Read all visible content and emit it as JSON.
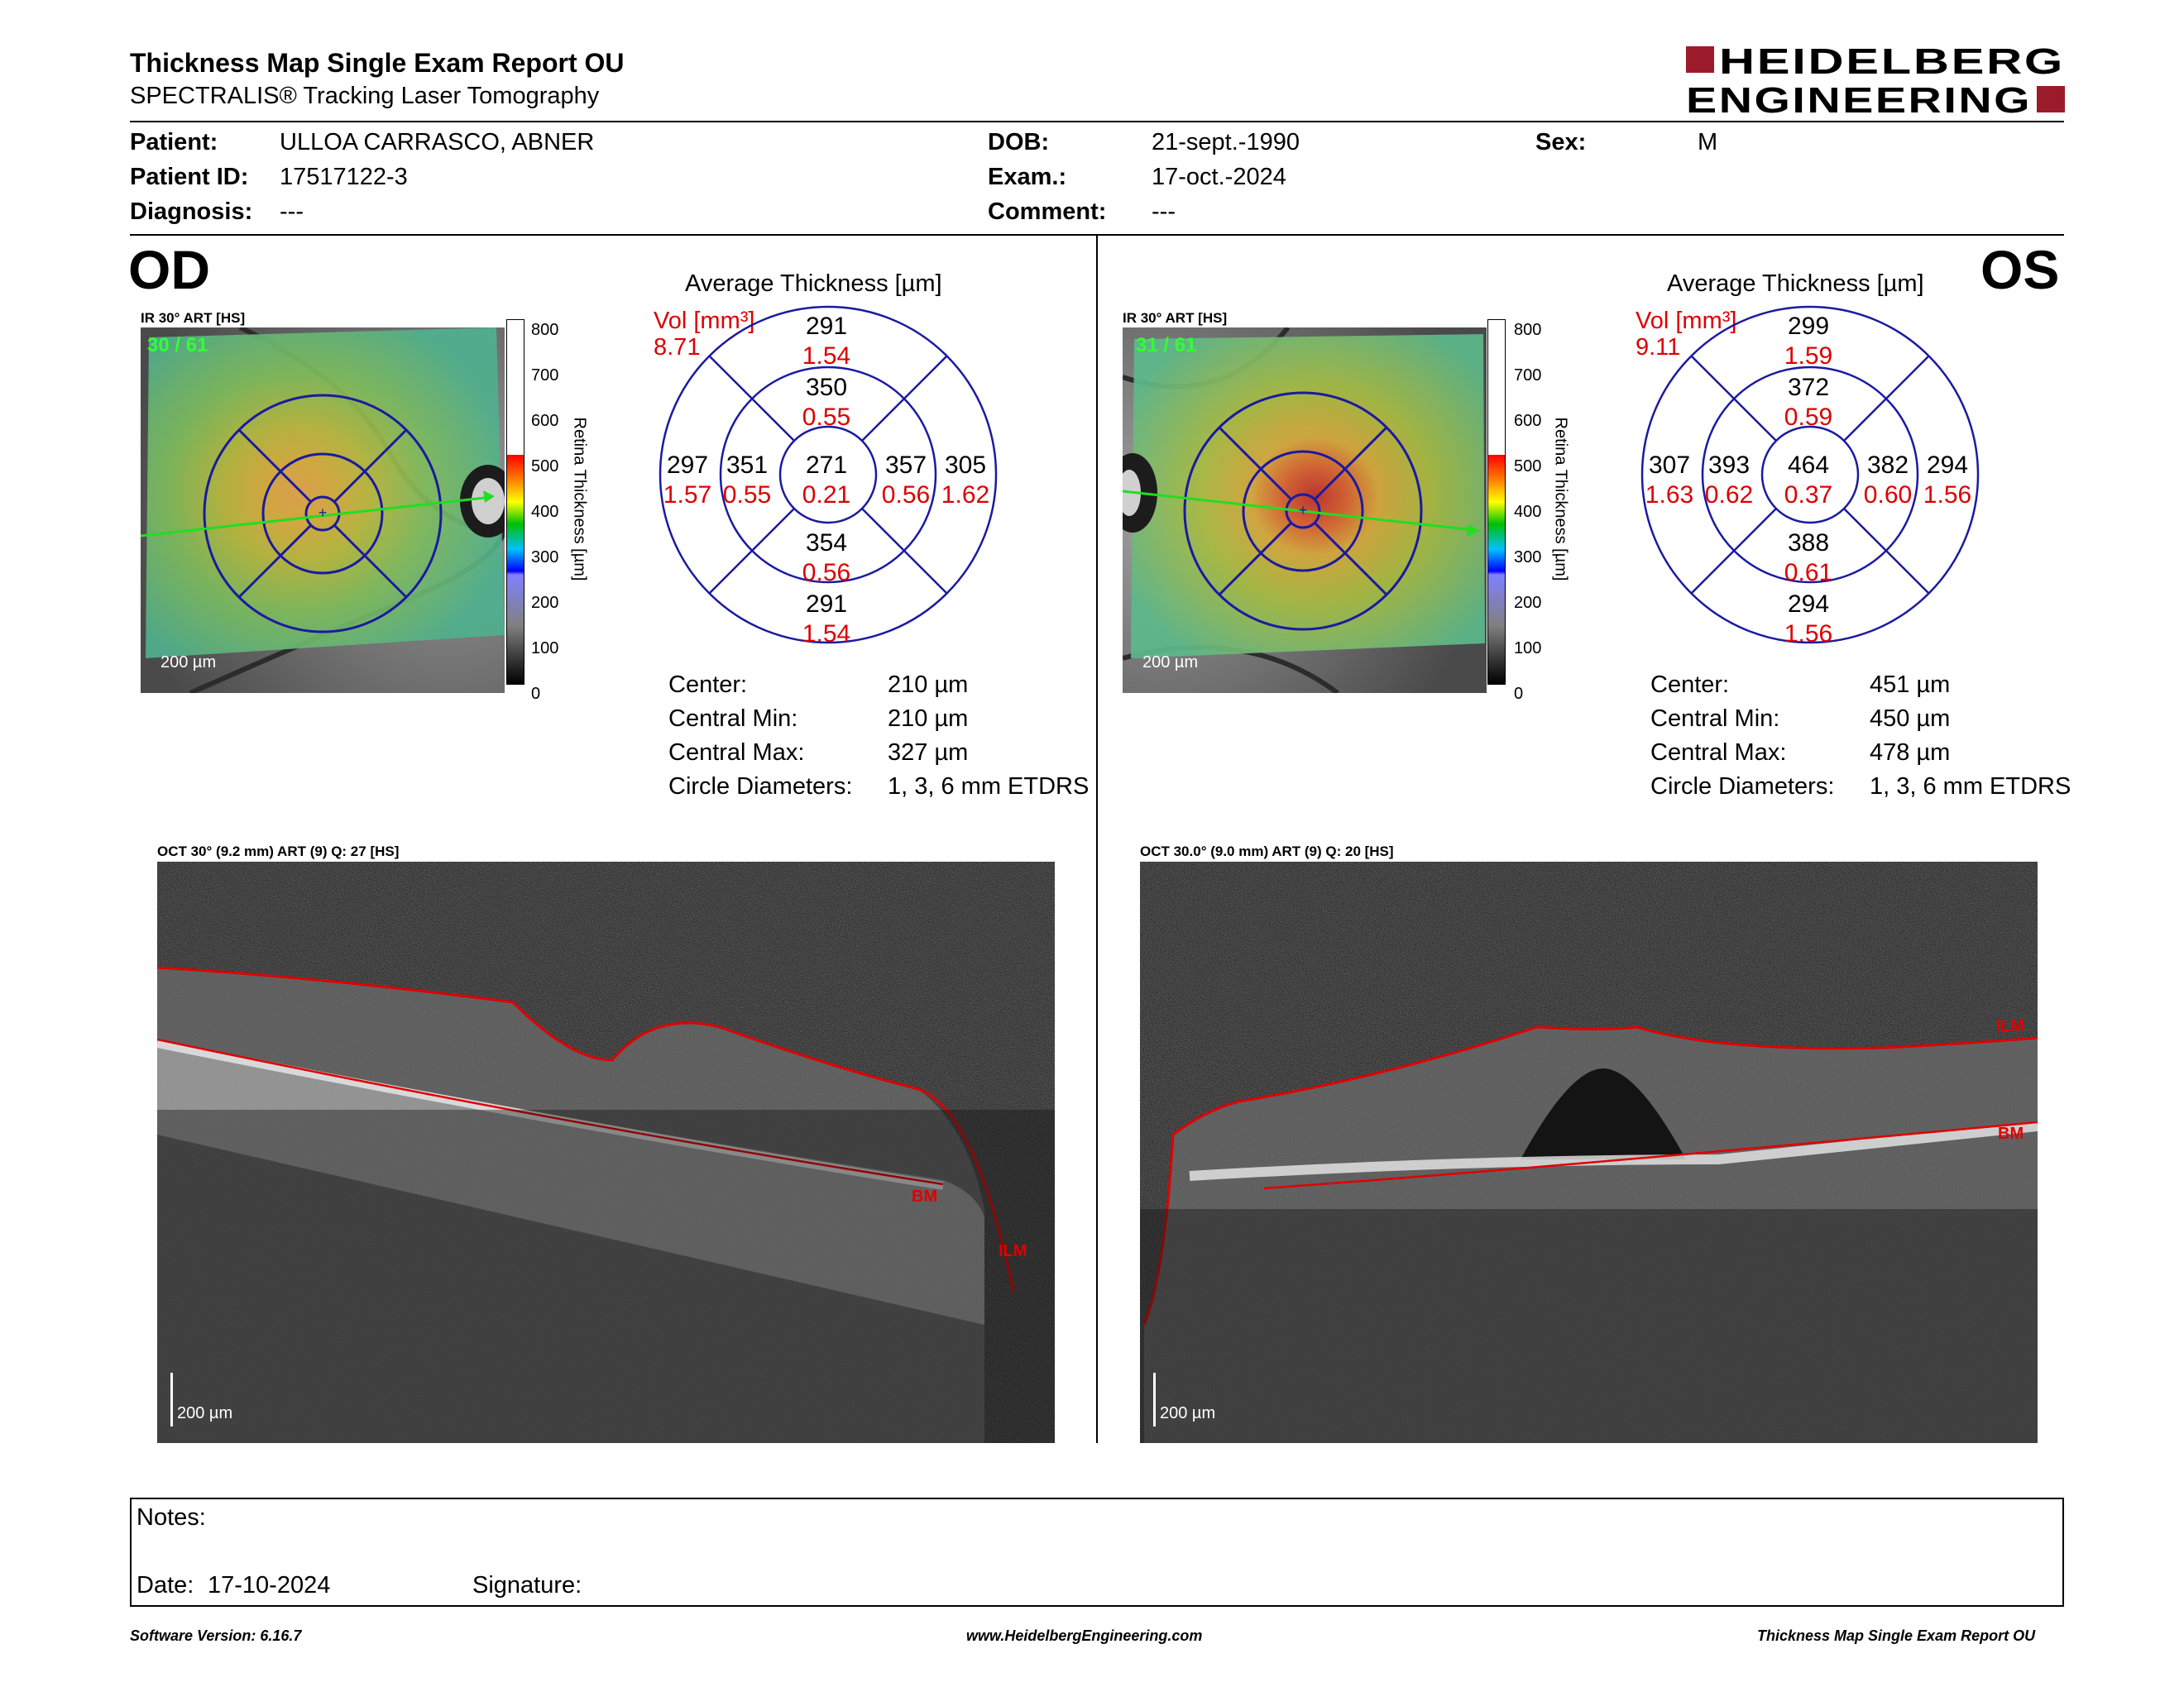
{
  "header": {
    "title": "Thickness Map Single Exam Report OU",
    "subtitle": "SPECTRALIS® Tracking Laser Tomography",
    "logo_line1": "HEIDELBERG",
    "logo_line2": "ENGINEERING"
  },
  "patient": {
    "patient_label": "Patient:",
    "patient_value": "ULLOA CARRASCO, ABNER",
    "id_label": "Patient ID:",
    "id_value": "17517122-3",
    "diag_label": "Diagnosis:",
    "diag_value": "---",
    "dob_label": "DOB:",
    "dob_value": "21-sept.-1990",
    "exam_label": "Exam.:",
    "exam_value": "17-oct.-2024",
    "comment_label": "Comment:",
    "comment_value": "---",
    "sex_label": "Sex:",
    "sex_value": "M"
  },
  "od": {
    "eye": "OD",
    "ir_label": "IR 30° ART [HS]",
    "frames": "30 / 61",
    "scale_label": "200 µm",
    "colorbar_ticks": [
      "800",
      "700",
      "600",
      "500",
      "400",
      "300",
      "200",
      "100",
      "0"
    ],
    "colorbar_title": "Retina Thickness [µm]",
    "avg_title": "Average Thickness [µm]",
    "vol_label": "Vol [mm³]",
    "vol_value": "8.71",
    "grid": {
      "center": {
        "t": "271",
        "v": "0.21"
      },
      "inner_sup": {
        "t": "350",
        "v": "0.55"
      },
      "inner_inf": {
        "t": "354",
        "v": "0.56"
      },
      "inner_nas": {
        "t": "351",
        "v": "0.55"
      },
      "inner_temp": {
        "t": "357",
        "v": "0.56"
      },
      "outer_sup": {
        "t": "291",
        "v": "1.54"
      },
      "outer_inf": {
        "t": "291",
        "v": "1.54"
      },
      "outer_nas": {
        "t": "297",
        "v": "1.57"
      },
      "outer_temp": {
        "t": "305",
        "v": "1.62"
      }
    },
    "stats": [
      {
        "label": "Center:",
        "value": "210 µm"
      },
      {
        "label": "Central Min:",
        "value": "210 µm"
      },
      {
        "label": "Central Max:",
        "value": "327 µm"
      },
      {
        "label": "Circle Diameters:",
        "value": "1, 3, 6 mm ETDRS"
      }
    ],
    "oct_label": "OCT 30° (9.2 mm) ART (9) Q: 27 [HS]",
    "oct_scale": "200 µm",
    "oct_marks": [
      "BM",
      "ILM"
    ]
  },
  "os": {
    "eye": "OS",
    "ir_label": "IR 30° ART [HS]",
    "frames": "31 / 61",
    "scale_label": "200 µm",
    "colorbar_ticks": [
      "800",
      "700",
      "600",
      "500",
      "400",
      "300",
      "200",
      "100",
      "0"
    ],
    "colorbar_title": "Retina Thickness [µm]",
    "avg_title": "Average Thickness [µm]",
    "vol_label": "Vol [mm³]",
    "vol_value": "9.11",
    "grid": {
      "center": {
        "t": "464",
        "v": "0.37"
      },
      "inner_sup": {
        "t": "372",
        "v": "0.59"
      },
      "inner_inf": {
        "t": "388",
        "v": "0.61"
      },
      "inner_nas": {
        "t": "393",
        "v": "0.62"
      },
      "inner_temp": {
        "t": "382",
        "v": "0.60"
      },
      "outer_sup": {
        "t": "299",
        "v": "1.59"
      },
      "outer_inf": {
        "t": "294",
        "v": "1.56"
      },
      "outer_nas": {
        "t": "307",
        "v": "1.63"
      },
      "outer_temp": {
        "t": "294",
        "v": "1.56"
      }
    },
    "stats": [
      {
        "label": "Center:",
        "value": "451 µm"
      },
      {
        "label": "Central Min:",
        "value": "450 µm"
      },
      {
        "label": "Central Max:",
        "value": "478 µm"
      },
      {
        "label": "Circle Diameters:",
        "value": "1, 3, 6 mm ETDRS"
      }
    ],
    "oct_label": "OCT 30.0° (9.0 mm) ART (9) Q: 20 [HS]",
    "oct_scale": "200 µm",
    "oct_marks": [
      "ILM",
      "BM"
    ]
  },
  "notes": {
    "notes_label": "Notes:",
    "date_label": "Date:",
    "date_value": "17-10-2024",
    "signature_label": "Signature:"
  },
  "footer": {
    "software": "Software Version: 6.16.7",
    "website": "www.HeidelbergEngineering.com",
    "report": "Thickness Map Single Exam Report OU"
  },
  "colors": {
    "brand_red": "#9b1b2a",
    "grid_blue": "#1a1aa0",
    "value_red": "#dd0000",
    "segment_red": "#e00000",
    "frame_green": "#33ff33"
  }
}
